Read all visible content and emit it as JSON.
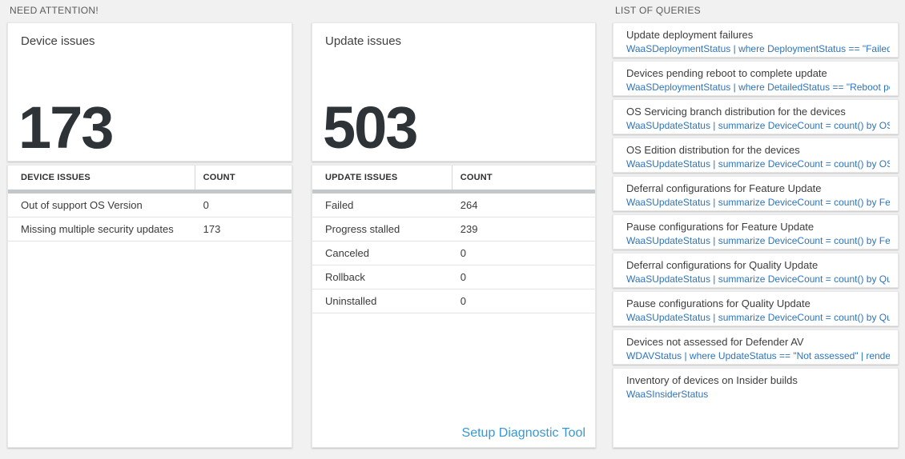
{
  "colors": {
    "background": "#f1f1f1",
    "tile": "#ffffff",
    "metric_number": "#2e3338",
    "query_blue": "#2f74ba",
    "link_blue": "#3897d3"
  },
  "need_attention": {
    "section_title": "NEED ATTENTION!",
    "device_card": {
      "title": "Device issues",
      "value": "173",
      "table": {
        "columns": [
          "DEVICE ISSUES",
          "COUNT"
        ],
        "rows": [
          {
            "label": "Out of support OS Version",
            "count": "0"
          },
          {
            "label": "Missing multiple security updates",
            "count": "173"
          }
        ]
      }
    },
    "update_card": {
      "title": "Update issues",
      "value": "503",
      "table": {
        "columns": [
          "UPDATE ISSUES",
          "COUNT"
        ],
        "rows": [
          {
            "label": "Failed",
            "count": "264"
          },
          {
            "label": "Progress stalled",
            "count": "239"
          },
          {
            "label": "Canceled",
            "count": "0"
          },
          {
            "label": "Rollback",
            "count": "0"
          },
          {
            "label": "Uninstalled",
            "count": "0"
          }
        ]
      },
      "footer_link": "Setup Diagnostic Tool"
    }
  },
  "queries": {
    "section_title": "LIST OF QUERIES",
    "items": [
      {
        "title": "Update deployment failures",
        "query": "WaaSDeploymentStatus | where DeploymentStatus == \"Failed\" |..."
      },
      {
        "title": "Devices pending reboot to complete update",
        "query": "WaaSDeploymentStatus | where DetailedStatus == \"Reboot pend..."
      },
      {
        "title": "OS Servicing branch distribution for the devices",
        "query": "WaaSUpdateStatus | summarize DeviceCount = count() by OSSer..."
      },
      {
        "title": "OS Edition distribution for the devices",
        "query": "WaaSUpdateStatus | summarize DeviceCount = count() by OSEdit..."
      },
      {
        "title": "Deferral configurations for Feature Update",
        "query": "WaaSUpdateStatus | summarize DeviceCount = count() by Featur..."
      },
      {
        "title": "Pause configurations for Feature Update",
        "query": "WaaSUpdateStatus | summarize DeviceCount = count() by Featur..."
      },
      {
        "title": "Deferral configurations for Quality Update",
        "query": "WaaSUpdateStatus | summarize DeviceCount = count() by Qualit..."
      },
      {
        "title": "Pause configurations for Quality Update",
        "query": "WaaSUpdateStatus | summarize DeviceCount = count() by Qualit..."
      },
      {
        "title": "Devices not assessed for Defender AV",
        "query": "WDAVStatus | where UpdateStatus == \"Not assessed\" | render ta..."
      },
      {
        "title": "Inventory of devices on Insider builds",
        "query": "WaaSInsiderStatus"
      }
    ]
  }
}
